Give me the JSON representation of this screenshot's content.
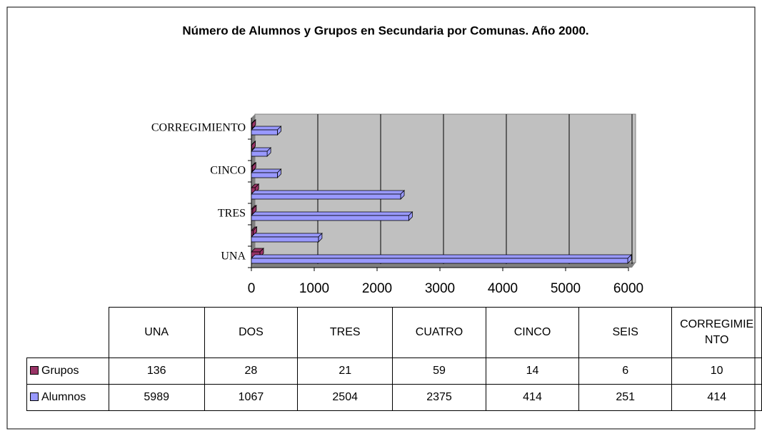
{
  "chart_data": {
    "type": "bar",
    "orientation": "horizontal",
    "title": "Número de Alumnos y Grupos en Secundaria por Comunas. Año 2000.",
    "categories": [
      "UNA",
      "DOS",
      "TRES",
      "CUATRO",
      "CINCO",
      "SEIS",
      "CORREGIMIENTO"
    ],
    "series": [
      {
        "name": "Grupos",
        "color": "#993366",
        "values": [
          136,
          28,
          21,
          59,
          14,
          6,
          10
        ]
      },
      {
        "name": "Alumnos",
        "color": "#9999ff",
        "values": [
          5989,
          1067,
          2504,
          2375,
          414,
          251,
          414
        ]
      }
    ],
    "xlim": [
      0,
      6000
    ],
    "xticks": [
      0,
      1000,
      2000,
      3000,
      4000,
      5000,
      6000
    ],
    "grid": true
  }
}
